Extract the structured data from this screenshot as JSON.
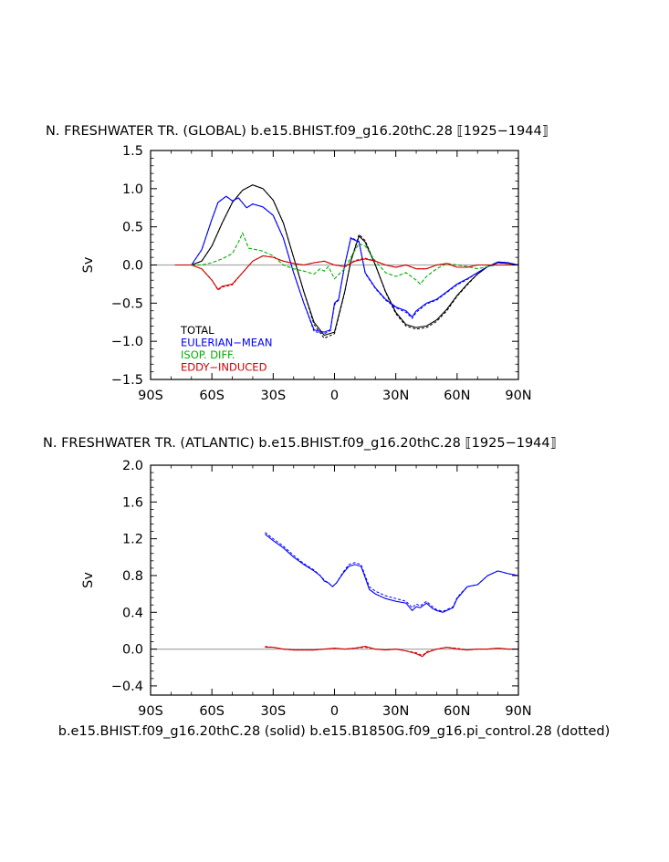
{
  "figure": {
    "footer": "b.e15.BHIST.f09_g16.20thC.28 (solid) b.e15.B1850G.f09_g16.pi_control.28 (dotted)"
  },
  "colors": {
    "total": "#000000",
    "eulerian": "#0000ff",
    "isop": "#00b000",
    "eddy": "#d00000",
    "zero": "#aaaaaa"
  },
  "chart_data": [
    {
      "type": "line",
      "title": "N. FRESHWATER TR. (GLOBAL) b.e15.BHIST.f09_g16.20thC.28 ⟦1925−1944⟧",
      "ylabel": "Sv",
      "xlabel": "",
      "xlim": [
        -90,
        90
      ],
      "ylim": [
        -1.5,
        1.5
      ],
      "xticks": [
        -90,
        -60,
        -30,
        0,
        30,
        60,
        90
      ],
      "xticklabels": [
        "90S",
        "60S",
        "30S",
        "0",
        "30N",
        "60N",
        "90N"
      ],
      "yticks": [
        -1.5,
        -1.0,
        -0.5,
        0.0,
        0.5,
        1.0,
        1.5
      ],
      "yticklabels": [
        "−1.5",
        "−1.0",
        "−0.5",
        "0.0",
        "0.5",
        "1.0",
        "1.5"
      ],
      "legend": [
        "TOTAL",
        "EULERIAN−MEAN",
        "ISOP. DIFF.",
        "EDDY−INDUCED"
      ],
      "legend_position": "bottom-left",
      "series": [
        {
          "name": "TOTAL",
          "color": "total",
          "x": [
            -78,
            -70,
            -65,
            -60,
            -55,
            -50,
            -45,
            -40,
            -35,
            -30,
            -25,
            -20,
            -15,
            -10,
            -5,
            0,
            5,
            8,
            12,
            15,
            20,
            25,
            30,
            35,
            40,
            45,
            50,
            55,
            60,
            65,
            70,
            75,
            80,
            85,
            90
          ],
          "y": [
            0,
            0,
            0.05,
            0.25,
            0.55,
            0.82,
            0.98,
            1.05,
            1.0,
            0.85,
            0.55,
            0.1,
            -0.35,
            -0.75,
            -0.92,
            -0.88,
            -0.35,
            0.05,
            0.38,
            0.3,
            0.0,
            -0.35,
            -0.62,
            -0.78,
            -0.82,
            -0.8,
            -0.72,
            -0.58,
            -0.4,
            -0.25,
            -0.12,
            -0.02,
            0.03,
            0.02,
            0.0
          ],
          "dotted_y": [
            0,
            0,
            0.05,
            0.25,
            0.55,
            0.82,
            0.98,
            1.05,
            1.0,
            0.85,
            0.55,
            0.1,
            -0.35,
            -0.78,
            -0.96,
            -0.9,
            -0.36,
            0.05,
            0.4,
            0.32,
            0.0,
            -0.36,
            -0.64,
            -0.8,
            -0.84,
            -0.82,
            -0.74,
            -0.6,
            -0.41,
            -0.26,
            -0.12,
            -0.02,
            0.03,
            0.02,
            0.0
          ]
        },
        {
          "name": "EULERIAN−MEAN",
          "color": "eulerian",
          "x": [
            -78,
            -70,
            -65,
            -60,
            -57,
            -53,
            -50,
            -47,
            -43,
            -40,
            -35,
            -30,
            -25,
            -20,
            -15,
            -10,
            -5,
            -2,
            0,
            2,
            5,
            8,
            12,
            15,
            20,
            25,
            30,
            35,
            38,
            40,
            45,
            50,
            55,
            60,
            65,
            70,
            75,
            80,
            85,
            90
          ],
          "y": [
            0,
            0,
            0.2,
            0.6,
            0.82,
            0.9,
            0.84,
            0.88,
            0.75,
            0.8,
            0.76,
            0.65,
            0.35,
            -0.1,
            -0.5,
            -0.85,
            -0.88,
            -0.85,
            -0.5,
            -0.45,
            0.0,
            0.35,
            0.3,
            -0.1,
            -0.3,
            -0.45,
            -0.55,
            -0.6,
            -0.68,
            -0.6,
            -0.5,
            -0.45,
            -0.35,
            -0.25,
            -0.18,
            -0.1,
            -0.02,
            0.04,
            0.03,
            0.0
          ],
          "dotted_y": [
            0,
            0,
            0.2,
            0.6,
            0.82,
            0.9,
            0.84,
            0.88,
            0.75,
            0.8,
            0.76,
            0.65,
            0.35,
            -0.1,
            -0.5,
            -0.87,
            -0.9,
            -0.86,
            -0.52,
            -0.46,
            0.0,
            0.36,
            0.31,
            -0.11,
            -0.31,
            -0.46,
            -0.56,
            -0.62,
            -0.7,
            -0.62,
            -0.51,
            -0.46,
            -0.36,
            -0.26,
            -0.19,
            -0.1,
            -0.02,
            0.04,
            0.03,
            0.0
          ]
        },
        {
          "name": "ISOP. DIFF.",
          "color": "isop",
          "dotted": true,
          "x": [
            -78,
            -70,
            -65,
            -60,
            -55,
            -50,
            -47,
            -45,
            -42,
            -38,
            -35,
            -30,
            -25,
            -20,
            -15,
            -10,
            -7,
            -5,
            -3,
            0,
            3,
            5,
            8,
            12,
            15,
            20,
            25,
            30,
            35,
            40,
            42,
            45,
            50,
            55,
            60,
            65,
            70,
            75,
            80,
            85,
            90
          ],
          "y": [
            0,
            0,
            0,
            0.03,
            0.08,
            0.15,
            0.3,
            0.42,
            0.22,
            0.2,
            0.18,
            0.12,
            0.0,
            -0.05,
            -0.08,
            -0.12,
            -0.05,
            -0.08,
            -0.02,
            -0.18,
            -0.1,
            -0.05,
            0.1,
            0.28,
            0.25,
            0.05,
            -0.1,
            -0.15,
            -0.1,
            -0.2,
            -0.25,
            -0.15,
            -0.05,
            0.02,
            0.0,
            -0.02,
            -0.05,
            -0.02,
            0.0,
            0.0,
            0.0
          ]
        },
        {
          "name": "EDDY−INDUCED",
          "color": "eddy",
          "x": [
            -78,
            -70,
            -65,
            -60,
            -57,
            -55,
            -50,
            -45,
            -40,
            -35,
            -30,
            -25,
            -20,
            -15,
            -10,
            -5,
            0,
            5,
            10,
            15,
            20,
            25,
            30,
            35,
            40,
            45,
            50,
            55,
            60,
            65,
            70,
            75,
            80,
            85,
            90
          ],
          "y": [
            0,
            0,
            -0.05,
            -0.2,
            -0.32,
            -0.28,
            -0.25,
            -0.1,
            0.05,
            0.12,
            0.1,
            0.05,
            0.02,
            0.0,
            0.03,
            0.05,
            0.0,
            -0.02,
            0.05,
            0.08,
            0.05,
            0.0,
            -0.03,
            0.0,
            -0.05,
            -0.05,
            0.0,
            0.02,
            -0.03,
            -0.03,
            0.0,
            0.0,
            0.0,
            0.0,
            0.0
          ],
          "dotted_y": [
            0,
            0,
            -0.05,
            -0.2,
            -0.33,
            -0.29,
            -0.26,
            -0.1,
            0.05,
            0.12,
            0.1,
            0.05,
            0.02,
            0.0,
            0.03,
            0.05,
            0.0,
            -0.02,
            0.06,
            0.09,
            0.05,
            0.0,
            -0.03,
            0.0,
            -0.05,
            -0.05,
            0.0,
            0.02,
            -0.03,
            -0.03,
            0.0,
            0.0,
            0.0,
            0.0,
            0.0
          ]
        }
      ]
    },
    {
      "type": "line",
      "title": "N. FRESHWATER TR. (ATLANTIC) b.e15.BHIST.f09_g16.20thC.28 ⟦1925−1944⟧",
      "ylabel": "Sv",
      "xlabel": "b.e15.BHIST.f09_g16.20thC.28 (solid) b.e15.B1850G.f09_g16.pi_control.28 (dotted)",
      "xlim": [
        -90,
        90
      ],
      "ylim": [
        -0.5,
        2.0
      ],
      "xticks": [
        -90,
        -60,
        -30,
        0,
        30,
        60,
        90
      ],
      "xticklabels": [
        "90S",
        "60S",
        "30S",
        "0",
        "30N",
        "60N",
        "90N"
      ],
      "yticks": [
        -0.4,
        0.0,
        0.4,
        0.8,
        1.2,
        1.6,
        2.0
      ],
      "yticklabels": [
        "−0.4",
        "0.0",
        "0.4",
        "0.8",
        "1.2",
        "1.6",
        "2.0"
      ],
      "series": [
        {
          "name": "",
          "color": "eulerian",
          "x": [
            -34,
            -30,
            -25,
            -20,
            -15,
            -10,
            -7,
            -5,
            -3,
            -1,
            1,
            4,
            7,
            10,
            13,
            15,
            17,
            20,
            25,
            30,
            35,
            38,
            40,
            42,
            45,
            48,
            50,
            53,
            55,
            58,
            60,
            62,
            65,
            70,
            75,
            80,
            85,
            90
          ],
          "y": [
            1.25,
            1.18,
            1.1,
            1.0,
            0.92,
            0.85,
            0.8,
            0.74,
            0.72,
            0.68,
            0.72,
            0.82,
            0.9,
            0.92,
            0.9,
            0.78,
            0.65,
            0.6,
            0.55,
            0.52,
            0.5,
            0.42,
            0.46,
            0.45,
            0.5,
            0.44,
            0.42,
            0.4,
            0.42,
            0.45,
            0.55,
            0.6,
            0.68,
            0.7,
            0.8,
            0.85,
            0.82,
            0.8
          ],
          "dotted_y": [
            1.27,
            1.2,
            1.12,
            1.02,
            0.93,
            0.86,
            0.8,
            0.75,
            0.72,
            0.68,
            0.72,
            0.83,
            0.92,
            0.94,
            0.92,
            0.8,
            0.68,
            0.63,
            0.58,
            0.55,
            0.52,
            0.45,
            0.49,
            0.47,
            0.52,
            0.46,
            0.43,
            0.41,
            0.43,
            0.46,
            0.56,
            0.61,
            0.68,
            0.7,
            0.8,
            0.85,
            0.82,
            0.8
          ]
        },
        {
          "name": "",
          "color": "eddy",
          "x": [
            -34,
            -30,
            -25,
            -20,
            -15,
            -10,
            -5,
            0,
            5,
            10,
            15,
            20,
            25,
            30,
            35,
            40,
            43,
            45,
            50,
            55,
            60,
            65,
            70,
            75,
            80,
            85,
            90
          ],
          "y": [
            0.02,
            0.02,
            0.0,
            -0.01,
            -0.01,
            -0.01,
            0.0,
            0.01,
            0.0,
            0.01,
            0.03,
            0.0,
            -0.01,
            0.0,
            -0.02,
            -0.05,
            -0.08,
            -0.04,
            0.0,
            0.02,
            0.0,
            -0.01,
            0.0,
            0.0,
            0.01,
            0.0,
            0.0
          ],
          "dotted_y": [
            0.03,
            0.02,
            0.0,
            -0.01,
            -0.01,
            -0.01,
            0.0,
            0.01,
            0.0,
            0.01,
            0.02,
            0.0,
            -0.01,
            0.0,
            -0.02,
            -0.04,
            -0.07,
            -0.03,
            0.0,
            0.02,
            0.01,
            -0.01,
            0.0,
            0.0,
            0.01,
            0.0,
            0.0
          ]
        }
      ]
    }
  ]
}
